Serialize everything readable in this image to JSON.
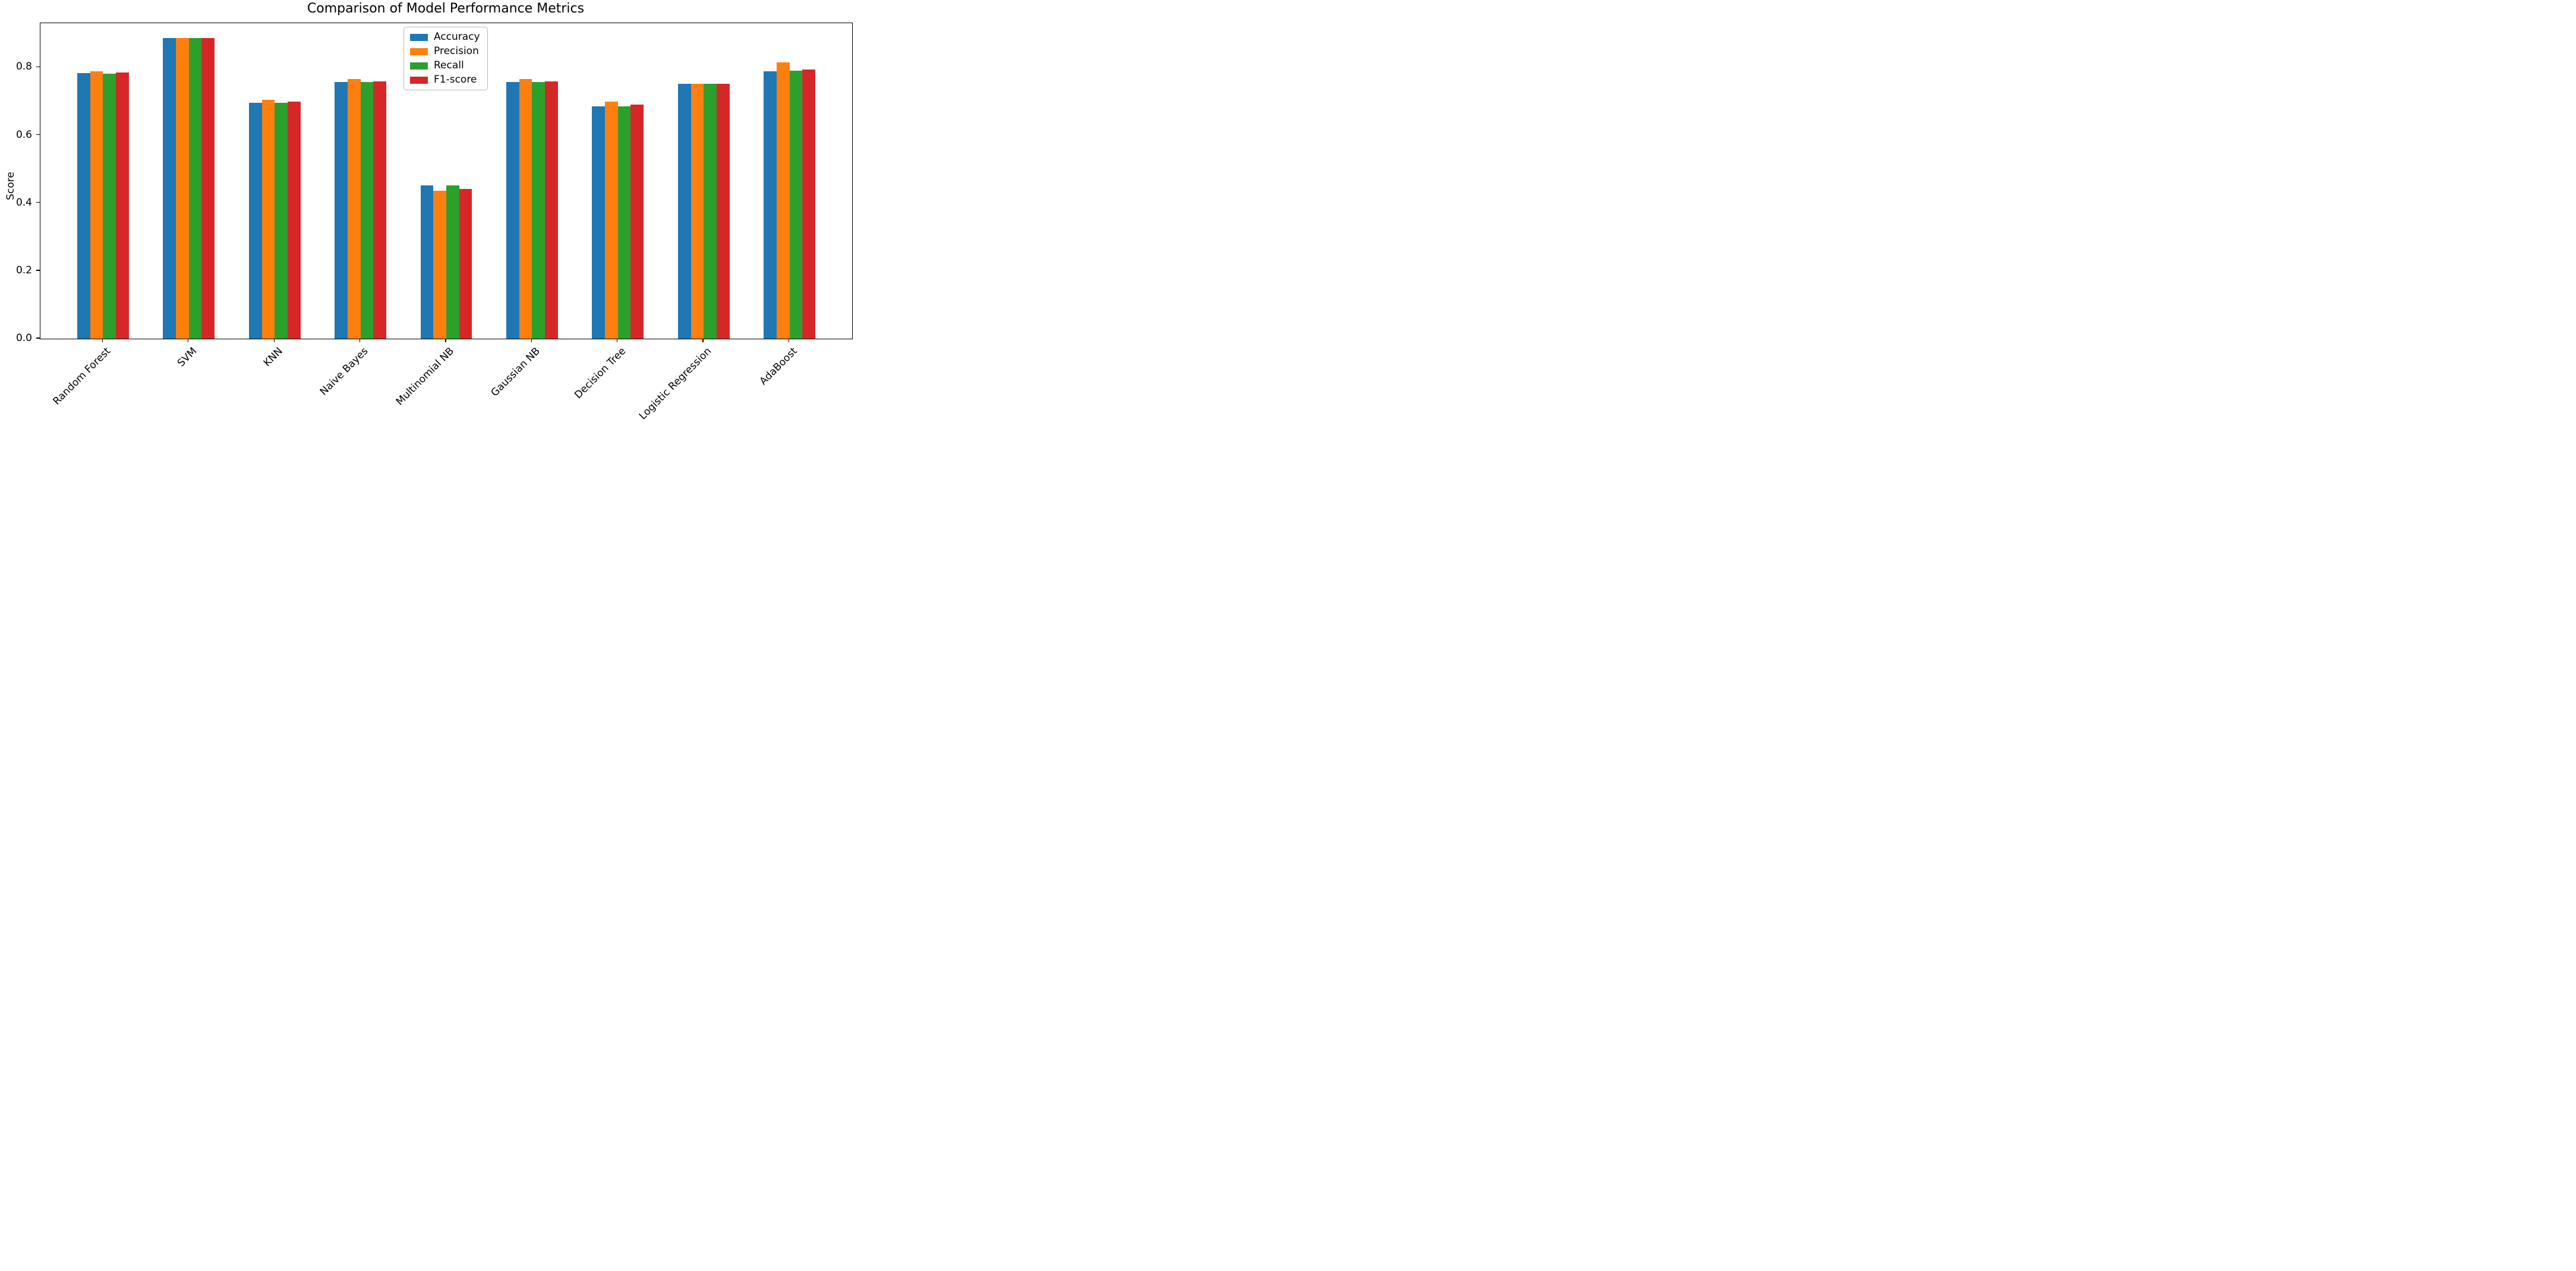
{
  "title": "Comparison of Model Performance Metrics",
  "ylabel": "Score",
  "chart_data": {
    "type": "bar",
    "title": "Comparison of Model Performance Metrics",
    "xlabel": "",
    "ylabel": "Score",
    "categories": [
      "Random Forest",
      "SVM",
      "KNN",
      "Naive Bayes",
      "Multinomial NB",
      "Gaussian NB",
      "Decision Tree",
      "Logistic Regression",
      "AdaBoost"
    ],
    "series": [
      {
        "name": "Accuracy",
        "color": "#1f77b4",
        "values": [
          0.783,
          0.886,
          0.696,
          0.757,
          0.452,
          0.757,
          0.686,
          0.752,
          0.789
        ]
      },
      {
        "name": "Precision",
        "color": "#ff7f0e",
        "values": [
          0.789,
          0.886,
          0.705,
          0.765,
          0.437,
          0.765,
          0.699,
          0.752,
          0.814
        ]
      },
      {
        "name": "Recall",
        "color": "#2ca02c",
        "values": [
          0.782,
          0.886,
          0.696,
          0.757,
          0.453,
          0.757,
          0.686,
          0.752,
          0.79
        ]
      },
      {
        "name": "F1-score",
        "color": "#d62728",
        "values": [
          0.785,
          0.886,
          0.7,
          0.759,
          0.442,
          0.759,
          0.691,
          0.752,
          0.793
        ]
      }
    ],
    "ylim": [
      0.0,
      0.9305
    ],
    "yticks": [
      0.0,
      0.2,
      0.4,
      0.6,
      0.8
    ],
    "grid": false,
    "legend_position": "upper center",
    "x_tick_rotation": 45
  }
}
